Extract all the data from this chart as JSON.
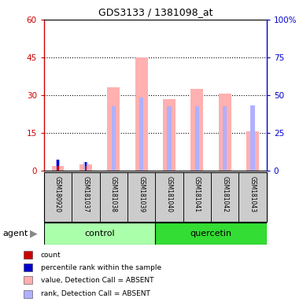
{
  "title": "GDS3133 / 1381098_at",
  "samples": [
    "GSM180920",
    "GSM181037",
    "GSM181038",
    "GSM181039",
    "GSM181040",
    "GSM181041",
    "GSM181042",
    "GSM181043"
  ],
  "value_absent": [
    2.0,
    2.5,
    33.0,
    45.0,
    28.5,
    32.5,
    30.5,
    15.5
  ],
  "rank_absent": [
    4.5,
    3.5,
    25.5,
    29.0,
    25.5,
    25.5,
    25.5,
    26.0
  ],
  "count": [
    2.0,
    2.0,
    null,
    null,
    null,
    null,
    null,
    null
  ],
  "count_rank": [
    4.5,
    3.5,
    null,
    null,
    null,
    null,
    null,
    null
  ],
  "ylim_left": [
    0,
    60
  ],
  "ylim_right": [
    0,
    100
  ],
  "yticks_left": [
    0,
    15,
    30,
    45,
    60
  ],
  "yticks_right": [
    0,
    25,
    50,
    75,
    100
  ],
  "ytick_labels_left": [
    "0",
    "15",
    "30",
    "45",
    "60"
  ],
  "ytick_labels_right": [
    "0",
    "25",
    "50",
    "75",
    "100%"
  ],
  "color_count": "#cc0000",
  "color_rank": "#0000cc",
  "color_value_absent": "#ffb0b0",
  "color_rank_absent": "#b0b0ff",
  "color_control_bg": "#aaffaa",
  "color_quercetin_bg": "#33dd33",
  "color_sample_bg": "#cccccc",
  "legend_items": [
    {
      "label": "count",
      "color": "#cc0000"
    },
    {
      "label": "percentile rank within the sample",
      "color": "#0000cc"
    },
    {
      "label": "value, Detection Call = ABSENT",
      "color": "#ffb0b0"
    },
    {
      "label": "rank, Detection Call = ABSENT",
      "color": "#b0b0ff"
    }
  ],
  "agent_label": "agent",
  "figsize": [
    3.85,
    3.84
  ],
  "dpi": 100
}
